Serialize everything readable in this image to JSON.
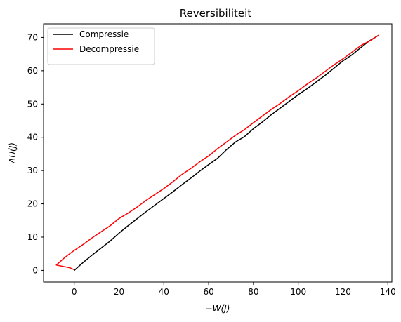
{
  "chart_data": {
    "type": "line",
    "title": "Reversibiliteit",
    "xlabel": "−W(J)",
    "ylabel": "ΔU(J)",
    "xlim": [
      -13.7,
      141.8
    ],
    "ylim": [
      -3.5,
      74.1
    ],
    "xticks": [
      0,
      20,
      40,
      60,
      80,
      100,
      120,
      140
    ],
    "yticks": [
      0,
      10,
      20,
      30,
      40,
      50,
      60,
      70
    ],
    "grid": false,
    "legend_position": "upper-left",
    "series": [
      {
        "name": "Compressie",
        "color": "#000000",
        "points": [
          [
            0,
            0
          ],
          [
            4,
            2.4
          ],
          [
            8,
            4.6
          ],
          [
            12,
            6.7
          ],
          [
            16,
            8.8
          ],
          [
            20,
            11.2
          ],
          [
            24,
            13.4
          ],
          [
            28,
            15.5
          ],
          [
            32,
            17.6
          ],
          [
            36,
            19.6
          ],
          [
            40,
            21.6
          ],
          [
            44,
            23.6
          ],
          [
            48,
            25.7
          ],
          [
            52,
            27.7
          ],
          [
            56,
            29.8
          ],
          [
            60,
            31.8
          ],
          [
            64,
            33.7
          ],
          [
            68,
            36.3
          ],
          [
            72,
            38.6
          ],
          [
            76,
            40.2
          ],
          [
            80,
            42.6
          ],
          [
            84,
            44.6
          ],
          [
            88,
            46.8
          ],
          [
            92,
            48.8
          ],
          [
            96,
            50.8
          ],
          [
            100,
            52.8
          ],
          [
            104,
            54.6
          ],
          [
            108,
            56.6
          ],
          [
            112,
            58.6
          ],
          [
            116,
            60.8
          ],
          [
            120,
            63.0
          ],
          [
            124,
            64.8
          ],
          [
            128,
            67.0
          ],
          [
            132,
            69.1
          ],
          [
            136,
            70.7
          ]
        ]
      },
      {
        "name": "Decompressie",
        "color": "#ff0000",
        "points": [
          [
            136,
            70.7
          ],
          [
            132,
            69.0
          ],
          [
            128,
            67.6
          ],
          [
            124,
            65.6
          ],
          [
            120,
            63.6
          ],
          [
            116,
            61.8
          ],
          [
            112,
            59.8
          ],
          [
            108,
            57.8
          ],
          [
            104,
            56.0
          ],
          [
            100,
            54.0
          ],
          [
            96,
            52.2
          ],
          [
            92,
            50.2
          ],
          [
            88,
            48.4
          ],
          [
            84,
            46.4
          ],
          [
            80,
            44.4
          ],
          [
            76,
            42.3
          ],
          [
            72,
            40.6
          ],
          [
            68,
            38.6
          ],
          [
            64,
            36.6
          ],
          [
            60,
            34.4
          ],
          [
            56,
            32.6
          ],
          [
            52,
            30.6
          ],
          [
            48,
            28.8
          ],
          [
            44,
            26.6
          ],
          [
            40,
            24.6
          ],
          [
            36,
            22.8
          ],
          [
            32,
            21.0
          ],
          [
            28,
            19.0
          ],
          [
            24,
            17.2
          ],
          [
            20,
            15.6
          ],
          [
            16,
            13.4
          ],
          [
            12,
            11.6
          ],
          [
            8,
            9.8
          ],
          [
            4,
            7.8
          ],
          [
            0,
            6.0
          ],
          [
            -4,
            4.0
          ],
          [
            -8,
            1.6
          ],
          [
            -2,
            0.8
          ],
          [
            0,
            0.2
          ]
        ]
      }
    ]
  }
}
